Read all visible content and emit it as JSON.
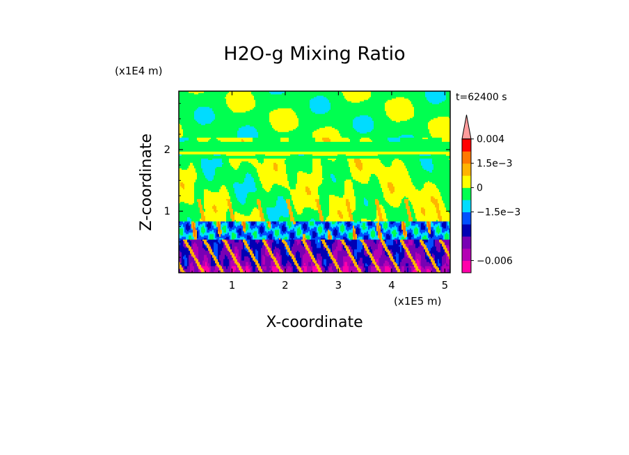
{
  "chart_data": {
    "type": "heatmap",
    "title": "H2O-g Mixing Ratio",
    "xlabel": "X-coordinate",
    "ylabel": "Z-coordinate",
    "x_scale_label": "(x1E5 m)",
    "y_scale_label": "(x1E4 m)",
    "time_label": "t=62400 s",
    "xlim": [
      0,
      5.1
    ],
    "ylim": [
      0,
      2.95
    ],
    "x_ticks": [
      {
        "value": 1,
        "label": "1"
      },
      {
        "value": 2,
        "label": "2"
      },
      {
        "value": 3,
        "label": "3"
      },
      {
        "value": 4,
        "label": "4"
      },
      {
        "value": 5,
        "label": "5"
      }
    ],
    "y_ticks": [
      {
        "value": 1,
        "label": "1"
      },
      {
        "value": 2,
        "label": "2"
      }
    ],
    "colorbar": {
      "levels": [
        {
          "color": "#ff00aa"
        },
        {
          "color": "#b400b4"
        },
        {
          "color": "#7800b4"
        },
        {
          "color": "#0000b4"
        },
        {
          "color": "#0050ff"
        },
        {
          "color": "#00dcff"
        },
        {
          "color": "#00ff50"
        },
        {
          "color": "#ffff00"
        },
        {
          "color": "#ffb400"
        },
        {
          "color": "#ff7800"
        },
        {
          "color": "#ff0000"
        },
        {
          "color": "#ff9c9c"
        }
      ],
      "labels": [
        {
          "text": "0.004",
          "level": 11
        },
        {
          "text": "1.5e-3",
          "level": 9
        },
        {
          "text": "0",
          "level": 7
        },
        {
          "text": "-1.5e-3",
          "level": 5
        },
        {
          "text": "-0.006",
          "level": 1
        }
      ]
    },
    "field_description_layers": [
      {
        "z_range": [
          0,
          0.55
        ],
        "dominant_colors": [
          "#0000b4",
          "#7800b4",
          "#b400b4"
        ]
      },
      {
        "z_range": [
          0.55,
          0.85
        ],
        "dominant_colors": [
          "#00dcff",
          "#ff7800",
          "#ffff00"
        ]
      },
      {
        "z_range": [
          0.85,
          2.95
        ],
        "dominant_colors": [
          "#ffff00",
          "#00ff50"
        ]
      }
    ]
  }
}
